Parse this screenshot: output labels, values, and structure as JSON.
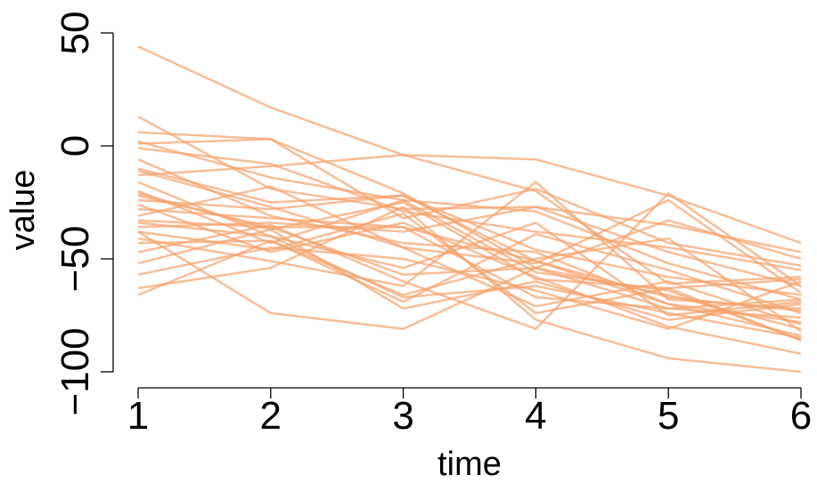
{
  "chart_data": {
    "type": "line",
    "title": "",
    "xlabel": "time",
    "ylabel": "value",
    "x": [
      1,
      2,
      3,
      4,
      5,
      6
    ],
    "x_ticks": [
      "1",
      "2",
      "3",
      "4",
      "5",
      "6"
    ],
    "y_ticks": [
      "50",
      "0",
      "−50",
      "−100"
    ],
    "y_tick_values": [
      50,
      0,
      -50,
      -100
    ],
    "xlim": [
      1,
      6
    ],
    "ylim": [
      -100,
      50
    ],
    "grid": false,
    "legend": "none",
    "line_color": "#F4A36C",
    "line_opacity": 0.7,
    "series": [
      {
        "values": [
          44,
          17,
          -4,
          -6,
          -22,
          -43
        ]
      },
      {
        "values": [
          13,
          -19,
          -28,
          -27,
          -35,
          -47
        ]
      },
      {
        "values": [
          6,
          3,
          -32,
          -19,
          -43,
          -53
        ]
      },
      {
        "values": [
          2,
          -14,
          -24,
          -29,
          -52,
          -68
        ]
      },
      {
        "values": [
          -1,
          -8,
          -29,
          -38,
          -45,
          -55
        ]
      },
      {
        "values": [
          -6,
          -31,
          -43,
          -47,
          -70,
          -78
        ]
      },
      {
        "values": [
          -10,
          -25,
          -22,
          -46,
          -58,
          -66
        ]
      },
      {
        "values": [
          -13,
          -9,
          -4,
          -20,
          -61,
          -58
        ]
      },
      {
        "values": [
          -16,
          -40,
          -67,
          -62,
          -74,
          -85
        ]
      },
      {
        "values": [
          -20,
          -43,
          -24,
          -56,
          -64,
          -86
        ]
      },
      {
        "values": [
          -22,
          -36,
          -57,
          -54,
          -66,
          -81
        ]
      },
      {
        "values": [
          -24,
          -28,
          -22,
          -51,
          -70,
          -84
        ]
      },
      {
        "values": [
          -26,
          -47,
          -34,
          -58,
          -80,
          -92
        ]
      },
      {
        "values": [
          -28,
          -32,
          -36,
          -67,
          -72,
          -76
        ]
      },
      {
        "values": [
          -31,
          -18,
          -45,
          -71,
          -60,
          -79
        ]
      },
      {
        "values": [
          -34,
          -40,
          -54,
          -34,
          -75,
          -69
        ]
      },
      {
        "values": [
          -36,
          -34,
          -38,
          -27,
          -47,
          -62
        ]
      },
      {
        "values": [
          -38,
          -46,
          -30,
          -74,
          -63,
          -59
        ]
      },
      {
        "values": [
          -41,
          -51,
          -62,
          -16,
          -68,
          -72
        ]
      },
      {
        "values": [
          -43,
          -42,
          -69,
          -39,
          -55,
          -74
        ]
      },
      {
        "values": [
          -47,
          -35,
          -60,
          -81,
          -21,
          -62
        ]
      },
      {
        "values": [
          -52,
          -37,
          -72,
          -60,
          -77,
          -70
        ]
      },
      {
        "values": [
          -57,
          -45,
          -50,
          -64,
          -81,
          -60
        ]
      },
      {
        "values": [
          -63,
          -54,
          -27,
          -77,
          -94,
          -100
        ]
      },
      {
        "values": [
          -66,
          -42,
          -66,
          -50,
          -41,
          -82
        ]
      },
      {
        "values": [
          -38,
          -74,
          -81,
          -54,
          -33,
          -50
        ]
      },
      {
        "values": [
          -33,
          -36,
          -36,
          -51,
          -67,
          -73
        ]
      },
      {
        "values": [
          -21,
          -37,
          -25,
          -59,
          -63,
          -86
        ]
      },
      {
        "values": [
          1,
          3,
          -21,
          -54,
          -72,
          -68
        ]
      },
      {
        "values": [
          -11,
          -27,
          -45,
          -52,
          -24,
          -65
        ]
      }
    ]
  }
}
